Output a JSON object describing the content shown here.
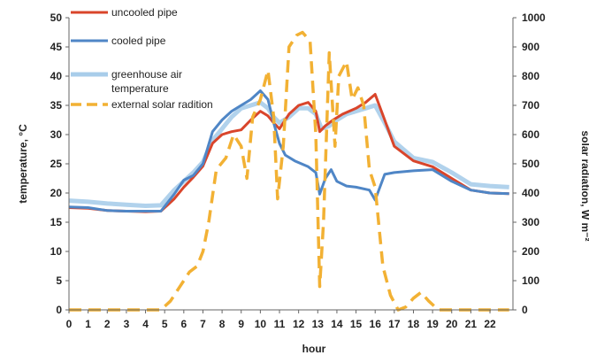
{
  "chart_data": {
    "type": "line",
    "xlabel": "hour",
    "ylabel_left": "temperature, °C",
    "ylabel_right": "solar radiation, W m⁻²",
    "x_ticks": [
      "0",
      "1",
      "2",
      "3",
      "4",
      "5",
      "6",
      "7",
      "8",
      "9",
      "10",
      "11",
      "12",
      "13",
      "14",
      "15",
      "16",
      "17",
      "18",
      "19",
      "20",
      "21",
      "22"
    ],
    "xlim": [
      0,
      23.2
    ],
    "ylim_left": [
      0,
      50
    ],
    "ylim_right": [
      0,
      1000
    ],
    "y_ticks_left": [
      "0",
      "5",
      "10",
      "15",
      "20",
      "25",
      "30",
      "35",
      "40",
      "45",
      "50"
    ],
    "y_ticks_right": [
      "0",
      "100",
      "200",
      "300",
      "400",
      "500",
      "600",
      "700",
      "800",
      "900",
      "1000"
    ],
    "legend_position": "top-left",
    "series": [
      {
        "name": "uncooled pipe",
        "axis": "left",
        "color": "#d9452b",
        "dash": "none",
        "points": [
          [
            0,
            17.5
          ],
          [
            1,
            17.4
          ],
          [
            2,
            17
          ],
          [
            3,
            16.9
          ],
          [
            4,
            16.8
          ],
          [
            4.8,
            16.9
          ],
          [
            5.5,
            19
          ],
          [
            6,
            21
          ],
          [
            6.5,
            22.7
          ],
          [
            7,
            24.6
          ],
          [
            7.5,
            28.5
          ],
          [
            8,
            30
          ],
          [
            8.5,
            30.5
          ],
          [
            9,
            30.8
          ],
          [
            9.5,
            32.5
          ],
          [
            10,
            34
          ],
          [
            10.4,
            33.2
          ],
          [
            10.7,
            32
          ],
          [
            11,
            31
          ],
          [
            11.5,
            33.5
          ],
          [
            12,
            35
          ],
          [
            12.5,
            35.5
          ],
          [
            12.9,
            34
          ],
          [
            13.1,
            30.5
          ],
          [
            13.4,
            31.5
          ],
          [
            13.8,
            32.5
          ],
          [
            14.3,
            33.5
          ],
          [
            15,
            34.5
          ],
          [
            15.5,
            35.5
          ],
          [
            16,
            36.9
          ],
          [
            16.5,
            32.5
          ],
          [
            17,
            28
          ],
          [
            18,
            25.5
          ],
          [
            19,
            24.5
          ],
          [
            20,
            22.5
          ],
          [
            21,
            20.5
          ],
          [
            22,
            20
          ],
          [
            23,
            19.9
          ]
        ]
      },
      {
        "name": "cooled pipe",
        "axis": "left",
        "color": "#4f86c6",
        "dash": "none",
        "points": [
          [
            0,
            17.6
          ],
          [
            1,
            17.5
          ],
          [
            2,
            17
          ],
          [
            3,
            16.9
          ],
          [
            4,
            16.9
          ],
          [
            4.8,
            16.9
          ],
          [
            5.5,
            19.8
          ],
          [
            6,
            22.2
          ],
          [
            6.5,
            23
          ],
          [
            7,
            25
          ],
          [
            7.5,
            30.5
          ],
          [
            8,
            32.5
          ],
          [
            8.5,
            34
          ],
          [
            9,
            35
          ],
          [
            9.5,
            36
          ],
          [
            10,
            37.5
          ],
          [
            10.4,
            36
          ],
          [
            10.7,
            32
          ],
          [
            11,
            28.5
          ],
          [
            11.3,
            26.5
          ],
          [
            11.8,
            25.5
          ],
          [
            12.5,
            24.5
          ],
          [
            12.9,
            23.5
          ],
          [
            13.1,
            19.8
          ],
          [
            13.4,
            22.5
          ],
          [
            13.7,
            24
          ],
          [
            14,
            22
          ],
          [
            14.5,
            21.2
          ],
          [
            15,
            21
          ],
          [
            15.7,
            20.5
          ],
          [
            16,
            18.8
          ],
          [
            16.5,
            23.2
          ],
          [
            17,
            23.5
          ],
          [
            18,
            23.8
          ],
          [
            19,
            24
          ],
          [
            20,
            22
          ],
          [
            21,
            20.5
          ],
          [
            22,
            20
          ],
          [
            23,
            19.9
          ]
        ]
      },
      {
        "name": "greenhouse air temperature",
        "axis": "left",
        "color": "#a8cdea",
        "dash": "none",
        "points": [
          [
            0,
            18.7
          ],
          [
            1,
            18.5
          ],
          [
            2,
            18.2
          ],
          [
            3,
            18
          ],
          [
            4,
            17.8
          ],
          [
            4.8,
            17.9
          ],
          [
            5.5,
            20.5
          ],
          [
            6,
            22
          ],
          [
            6.5,
            23.5
          ],
          [
            7,
            25.3
          ],
          [
            7.5,
            29
          ],
          [
            8,
            31
          ],
          [
            8.5,
            33
          ],
          [
            9,
            34.5
          ],
          [
            9.5,
            35
          ],
          [
            10,
            35.5
          ],
          [
            10.4,
            34.5
          ],
          [
            10.7,
            33
          ],
          [
            11,
            32
          ],
          [
            11.5,
            33
          ],
          [
            12,
            34.5
          ],
          [
            12.5,
            34.5
          ],
          [
            12.9,
            33.5
          ],
          [
            13.2,
            31
          ],
          [
            13.6,
            31.5
          ],
          [
            14,
            32.5
          ],
          [
            14.5,
            33.5
          ],
          [
            15,
            34
          ],
          [
            15.5,
            34.5
          ],
          [
            16,
            35
          ],
          [
            16.5,
            32
          ],
          [
            17,
            28.8
          ],
          [
            18,
            26
          ],
          [
            19,
            25.3
          ],
          [
            20,
            23.5
          ],
          [
            21,
            21.5
          ],
          [
            22,
            21.2
          ],
          [
            23,
            21
          ]
        ]
      },
      {
        "name": "external solar radition",
        "axis": "right",
        "color": "#f2b134",
        "dash": "dashed",
        "points": [
          [
            0,
            0
          ],
          [
            1,
            0
          ],
          [
            2,
            0
          ],
          [
            3,
            0
          ],
          [
            4,
            0
          ],
          [
            4.8,
            0
          ],
          [
            5.3,
            30
          ],
          [
            5.8,
            80
          ],
          [
            6.3,
            130
          ],
          [
            6.7,
            150
          ],
          [
            7,
            200
          ],
          [
            7.3,
            300
          ],
          [
            7.7,
            480
          ],
          [
            8.2,
            520
          ],
          [
            8.6,
            600
          ],
          [
            9,
            560
          ],
          [
            9.3,
            450
          ],
          [
            9.6,
            660
          ],
          [
            10,
            720
          ],
          [
            10.4,
            820
          ],
          [
            10.7,
            660
          ],
          [
            10.9,
            380
          ],
          [
            11.2,
            560
          ],
          [
            11.5,
            900
          ],
          [
            11.9,
            940
          ],
          [
            12.2,
            950
          ],
          [
            12.6,
            920
          ],
          [
            12.9,
            600
          ],
          [
            13.1,
            80
          ],
          [
            13.3,
            300
          ],
          [
            13.6,
            880
          ],
          [
            13.9,
            560
          ],
          [
            14.1,
            800
          ],
          [
            14.5,
            850
          ],
          [
            14.8,
            720
          ],
          [
            15.1,
            760
          ],
          [
            15.4,
            700
          ],
          [
            15.7,
            480
          ],
          [
            16,
            420
          ],
          [
            16.4,
            150
          ],
          [
            16.8,
            50
          ],
          [
            17.2,
            0
          ],
          [
            17.6,
            10
          ],
          [
            18,
            40
          ],
          [
            18.4,
            60
          ],
          [
            18.8,
            30
          ],
          [
            19.3,
            0
          ],
          [
            20,
            0
          ],
          [
            21,
            0
          ],
          [
            22,
            0
          ],
          [
            23,
            0
          ]
        ]
      }
    ]
  }
}
